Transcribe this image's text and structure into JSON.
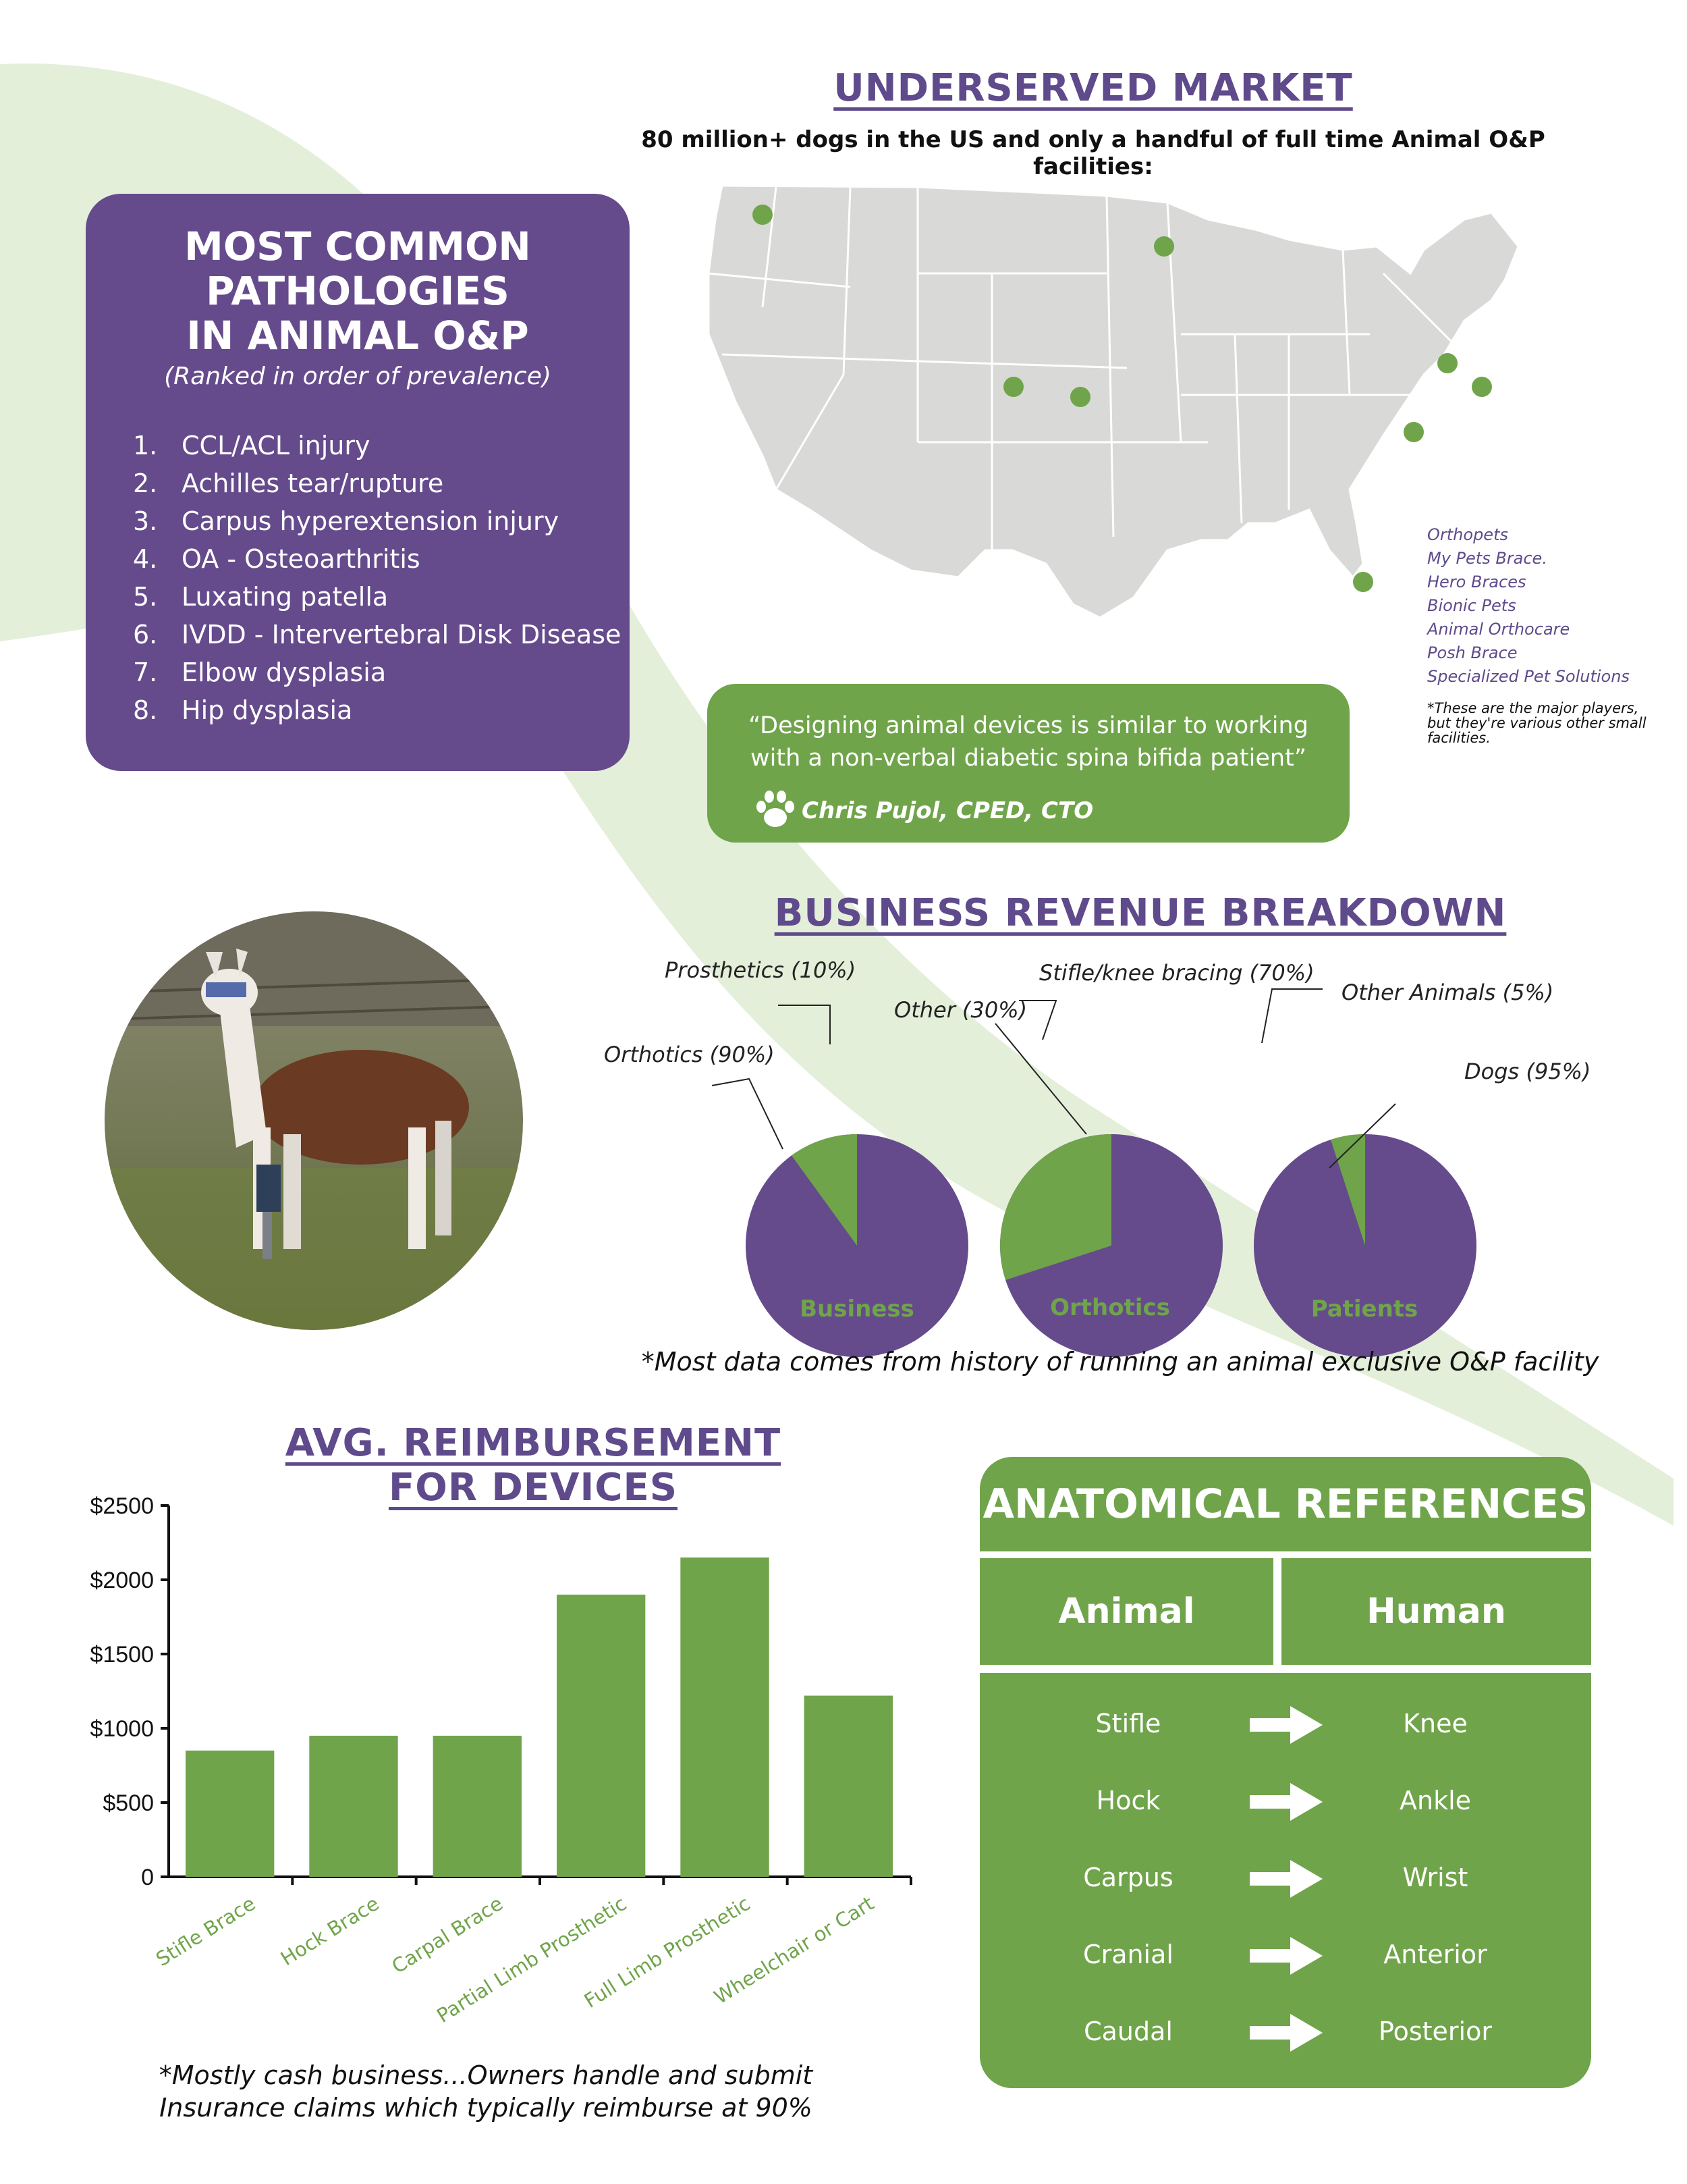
{
  "market": {
    "title": "UNDERSERVED MARKET",
    "subtitle": "80 million+ dogs in the US and only a handful of full time Animal O&P facilities:",
    "facilities": [
      "Orthopets",
      "My Pets Brace.",
      "Hero Braces",
      "Bionic Pets",
      "Animal Orthocare",
      "Posh Brace",
      "Specialized Pet Solutions"
    ],
    "note": "*These are the major players, but they're various other small facilities."
  },
  "pathologies": {
    "title_lines": [
      "MOST COMMON",
      "PATHOLOGIES",
      "IN ANIMAL O&P"
    ],
    "subtitle": "(Ranked in order of prevalence)",
    "items": [
      {
        "num": "1.",
        "label": "CCL/ACL injury"
      },
      {
        "num": "2.",
        "label": "Achilles tear/rupture"
      },
      {
        "num": "3.",
        "label": "Carpus hyperextension injury"
      },
      {
        "num": "4.",
        "label": "OA - Osteoarthritis"
      },
      {
        "num": "5.",
        "label": "Luxating patella"
      },
      {
        "num": "6.",
        "label": "IVDD - Intervertebral Disk Disease"
      },
      {
        "num": "7.",
        "label": "Elbow dysplasia"
      },
      {
        "num": "8.",
        "label": "Hip dysplasia"
      }
    ]
  },
  "quote": {
    "text": "“Designing animal devices is similar to working with a non-verbal diabetic spina bifida patient”",
    "author": "Chris Pujol, CPED, CTO"
  },
  "revenue": {
    "title": "BUSINESS REVENUE BREAKDOWN",
    "note": "*Most data comes from history of running an animal exclusive O&P facility"
  },
  "reimbursement": {
    "title_lines": [
      "AVG. REIMBURSEMENT ",
      "FOR DEVICES"
    ],
    "note_lines": [
      "*Mostly cash business...Owners handle and submit",
      "Insurance claims which typically reimburse at 90%"
    ]
  },
  "anatomy": {
    "title": "ANATOMICAL REFERENCES",
    "col_animal": "Animal",
    "col_human": "Human",
    "rows": [
      {
        "animal": "Stifle",
        "human": "Knee"
      },
      {
        "animal": "Hock",
        "human": "Ankle"
      },
      {
        "animal": "Carpus",
        "human": "Wrist"
      },
      {
        "animal": "Cranial",
        "human": "Anterior"
      },
      {
        "animal": "Caudal",
        "human": "Posterior"
      }
    ]
  },
  "chart_data": [
    {
      "type": "pie",
      "name": "Business",
      "slices": [
        {
          "label": "Orthotics (90%)",
          "value": 90,
          "color": "#654b8c"
        },
        {
          "label": "Prosthetics (10%)",
          "value": 10,
          "color": "#70a44a"
        }
      ]
    },
    {
      "type": "pie",
      "name": "Orthotics",
      "slices": [
        {
          "label": "Stifle/knee bracing (70%)",
          "value": 70,
          "color": "#654b8c"
        },
        {
          "label": "Other (30%)",
          "value": 30,
          "color": "#70a44a"
        }
      ]
    },
    {
      "type": "pie",
      "name": "Patients",
      "slices": [
        {
          "label": "Dogs (95%)",
          "value": 95,
          "color": "#654b8c"
        },
        {
          "label": "Other Animals (5%)",
          "value": 5,
          "color": "#70a44a"
        }
      ]
    },
    {
      "type": "bar",
      "categories": [
        "Stifle Brace",
        "Hock Brace",
        "Carpal Brace",
        "Partial Limb Prosthetic",
        "Full Limb Prosthetic",
        "Wheelchair or Cart"
      ],
      "values": [
        850,
        950,
        950,
        1900,
        2150,
        1220
      ],
      "yticks": [
        "0",
        "$500",
        "$1000",
        "$1500",
        "$2000",
        "$2500"
      ],
      "ylim": [
        0,
        2500
      ],
      "color": "#70a44a"
    }
  ]
}
